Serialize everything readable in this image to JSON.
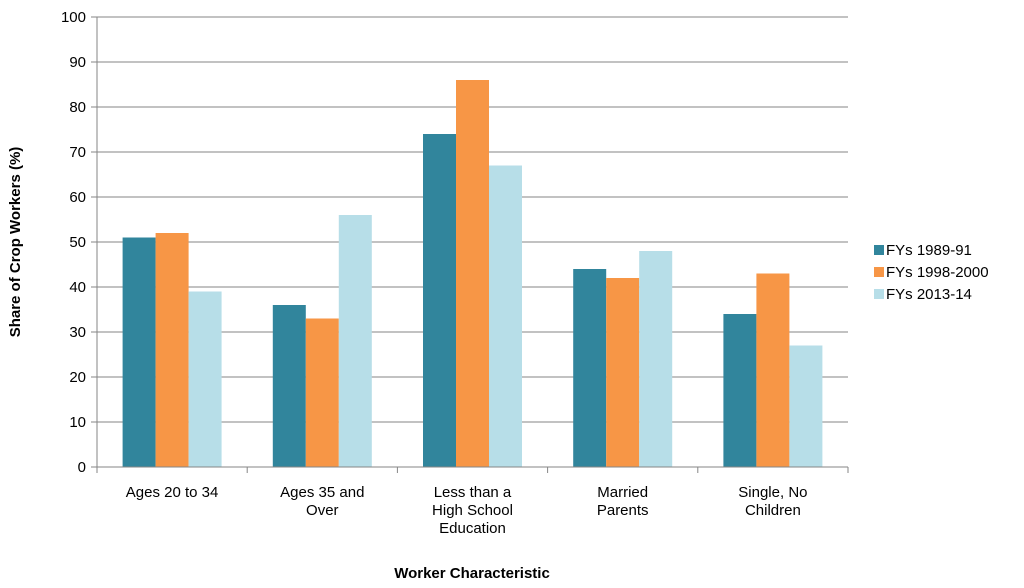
{
  "chart_data": {
    "type": "bar",
    "title": "",
    "xlabel": "Worker Characteristic",
    "ylabel": "Share of Crop Workers (%)",
    "ylim": [
      0,
      100
    ],
    "yticks": [
      "0",
      "10",
      "20",
      "30",
      "40",
      "50",
      "60",
      "70",
      "80",
      "90",
      "100"
    ],
    "grid": true,
    "legend_position": "right",
    "categories": [
      [
        "Ages 20 to 34"
      ],
      [
        "Ages 35 and",
        "Over"
      ],
      [
        "Less than a",
        "High School",
        "Education"
      ],
      [
        "Married",
        "Parents"
      ],
      [
        "Single, No",
        "Children"
      ]
    ],
    "series": [
      {
        "name": "FYs 1989-91",
        "color": "#31859c",
        "values": [
          51,
          36,
          74,
          44,
          34
        ]
      },
      {
        "name": "FYs 1998-2000",
        "color": "#f79646",
        "values": [
          52,
          33,
          86,
          42,
          43
        ]
      },
      {
        "name": "FYs 2013-14",
        "color": "#b7dee8",
        "values": [
          39,
          56,
          67,
          48,
          27
        ]
      }
    ]
  }
}
